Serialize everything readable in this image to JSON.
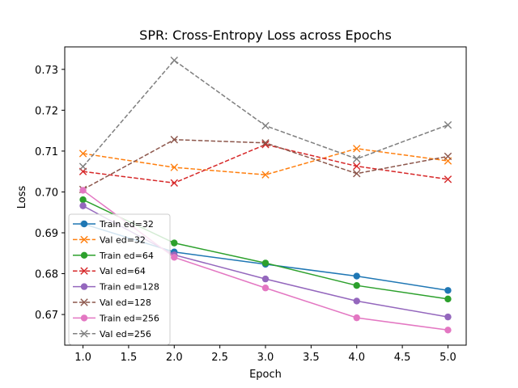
{
  "chart_data": {
    "type": "line",
    "title": "SPR: Cross-Entropy Loss across Epochs",
    "xlabel": "Epoch",
    "ylabel": "Loss",
    "xlim": [
      0.8,
      5.2
    ],
    "ylim": [
      0.6625,
      0.7355
    ],
    "x": [
      1,
      2,
      3,
      4,
      5
    ],
    "xticks": [
      "1.0",
      "1.5",
      "2.0",
      "2.5",
      "3.0",
      "3.5",
      "4.0",
      "4.5",
      "5.0"
    ],
    "xtick_values": [
      1.0,
      1.5,
      2.0,
      2.5,
      3.0,
      3.5,
      4.0,
      4.5,
      5.0
    ],
    "yticks": [
      "0.67",
      "0.68",
      "0.69",
      "0.70",
      "0.71",
      "0.72",
      "0.73"
    ],
    "ytick_values": [
      0.67,
      0.68,
      0.69,
      0.7,
      0.71,
      0.72,
      0.73
    ],
    "grid": false,
    "legend_position": "lower-left",
    "series": [
      {
        "name": "Train ed=32",
        "color": "#1f77b4",
        "style": "solid",
        "marker": "circle",
        "values": [
          0.6922,
          0.6853,
          0.6823,
          0.6794,
          0.6759
        ]
      },
      {
        "name": "Val ed=32",
        "color": "#ff7f0e",
        "style": "dashed",
        "marker": "x",
        "values": [
          0.7094,
          0.706,
          0.7042,
          0.7106,
          0.7076
        ]
      },
      {
        "name": "Train ed=64",
        "color": "#2ca02c",
        "style": "solid",
        "marker": "circle",
        "values": [
          0.6981,
          0.6875,
          0.6826,
          0.6771,
          0.6738
        ]
      },
      {
        "name": "Val ed=64",
        "color": "#d62728",
        "style": "dashed",
        "marker": "x",
        "values": [
          0.705,
          0.7022,
          0.7116,
          0.7063,
          0.7031
        ]
      },
      {
        "name": "Train ed=128",
        "color": "#9467bd",
        "style": "solid",
        "marker": "circle",
        "values": [
          0.6966,
          0.6846,
          0.6787,
          0.6733,
          0.6694
        ]
      },
      {
        "name": "Val ed=128",
        "color": "#8c564b",
        "style": "dashed",
        "marker": "x",
        "values": [
          0.7006,
          0.7128,
          0.712,
          0.7045,
          0.7087
        ]
      },
      {
        "name": "Train ed=256",
        "color": "#e377c2",
        "style": "solid",
        "marker": "circle",
        "values": [
          0.7004,
          0.684,
          0.6765,
          0.6692,
          0.6662
        ]
      },
      {
        "name": "Val ed=256",
        "color": "#7f7f7f",
        "style": "dashed",
        "marker": "x",
        "values": [
          0.7062,
          0.7322,
          0.7162,
          0.7081,
          0.7164
        ]
      }
    ]
  }
}
